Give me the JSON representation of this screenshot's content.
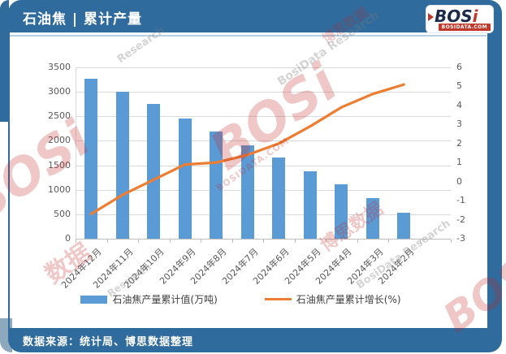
{
  "header": {
    "title": "石油焦 | 累计产量"
  },
  "logo": {
    "text_main": "BOS",
    "text_i": "i",
    "domain": "BOSIDATA.COM"
  },
  "chart_data": {
    "type": "combo",
    "title": "石油焦 | 累计产量",
    "categories": [
      "2024年12月",
      "2024年11月",
      "2024年10月",
      "2024年9月",
      "2024年8月",
      "2024年7月",
      "2024年6月",
      "2024年5月",
      "2024年4月",
      "2024年3月",
      "2024年2月"
    ],
    "series": [
      {
        "name": "石油焦产量累计值(万吨)",
        "type": "bar",
        "yaxis": "left",
        "color": "#5B9BD5",
        "values": [
          3270,
          3000,
          2750,
          2460,
          2195,
          1905,
          1655,
          1380,
          1105,
          825,
          535
        ]
      },
      {
        "name": "石油焦产量累计增长(%)",
        "type": "line",
        "yaxis": "right",
        "color": "#ED7D31",
        "values": [
          -1.7,
          -0.7,
          0.1,
          0.9,
          1.0,
          1.4,
          2.0,
          2.9,
          3.9,
          4.6,
          5.1
        ]
      }
    ],
    "left_axis": {
      "min": 0,
      "max": 3500,
      "step": 500
    },
    "right_axis": {
      "min": -3,
      "max": 6,
      "step": 1
    },
    "x_slots": 12,
    "grid": true,
    "legend_position": "bottom"
  },
  "source": {
    "text": "数据来源：统计局、博思数据整理"
  },
  "watermarks": {
    "bosi": "BOSi",
    "domain": "BOSIDATA.COM",
    "brand_cn": "博思数据",
    "research": "BosiData Research",
    "research_short": "Research",
    "data_cn": "数据"
  },
  "colors": {
    "frame_blue": "#2F6B9D",
    "bar_blue": "#5B9BD5",
    "line_orange": "#ED7D31",
    "gridline": "#D9D9D9"
  }
}
